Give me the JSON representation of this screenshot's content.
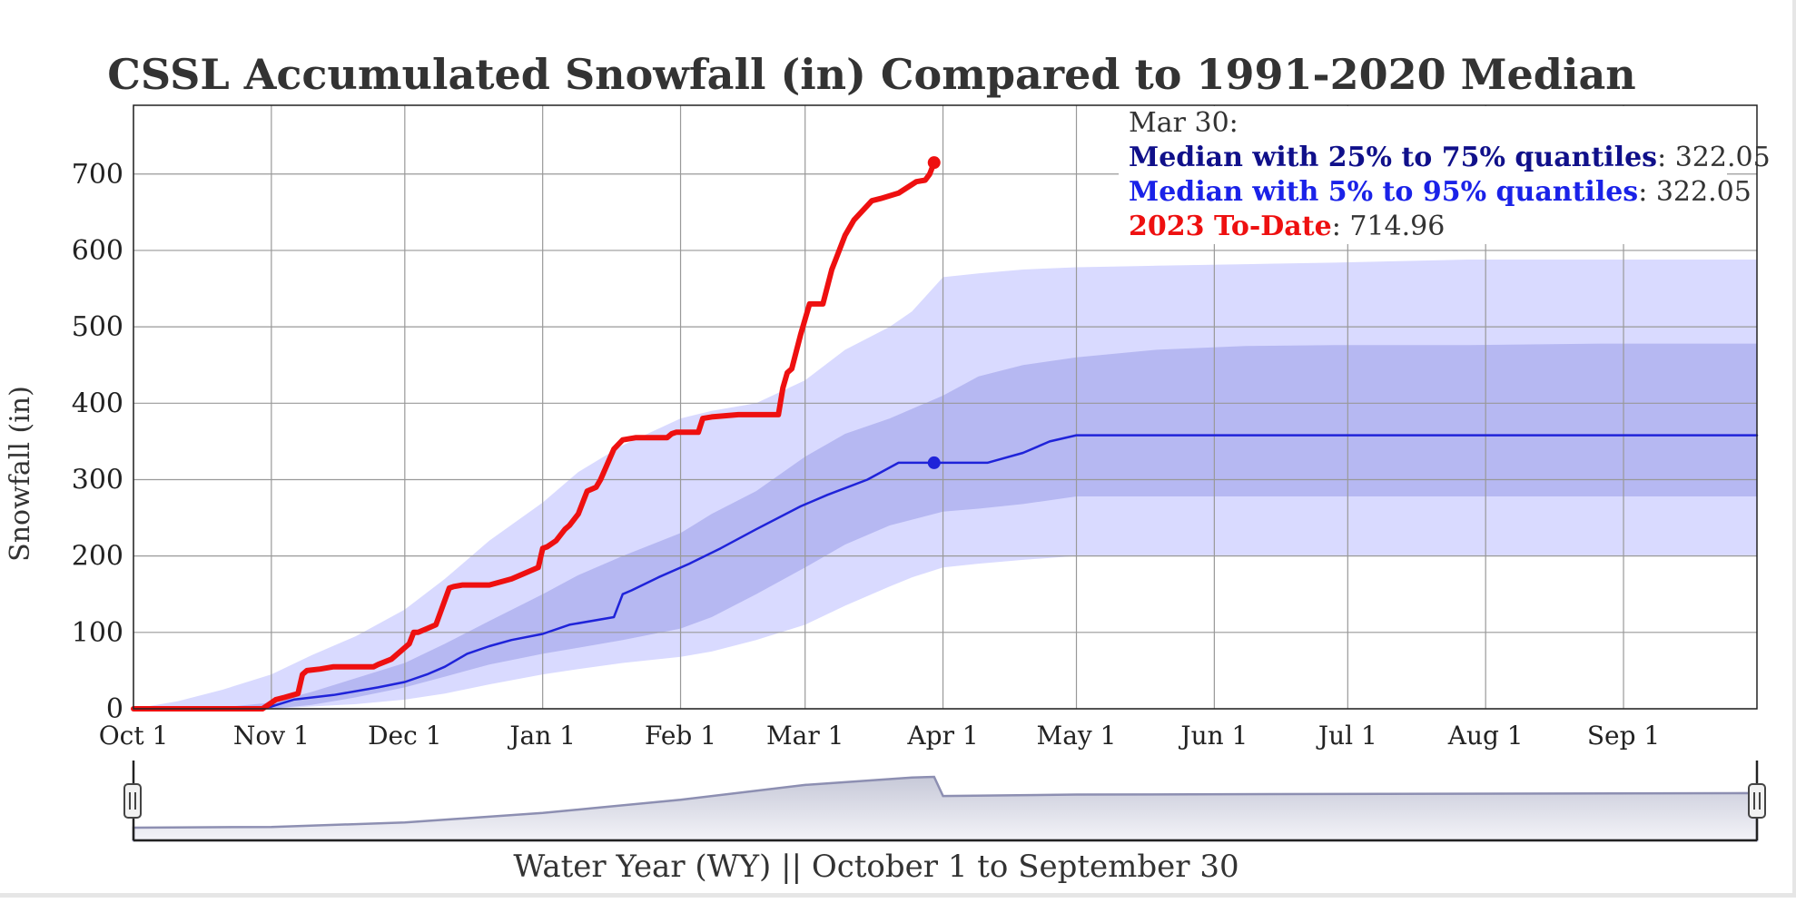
{
  "chart_data": {
    "type": "area",
    "title": "CSSL Accumulated Snowfall (in) Compared to 1991-2020 Median",
    "ylabel": "Snowfall (in)",
    "xlabel": "Water Year (WY) || October 1 to September 30",
    "ylim": [
      0,
      790
    ],
    "yticks": [
      0,
      100,
      200,
      300,
      400,
      500,
      600,
      700
    ],
    "xlim": [
      0,
      365
    ],
    "xticks": [
      {
        "day": 0,
        "label": "Oct 1"
      },
      {
        "day": 31,
        "label": "Nov 1"
      },
      {
        "day": 61,
        "label": "Dec 1"
      },
      {
        "day": 92,
        "label": "Jan 1"
      },
      {
        "day": 123,
        "label": "Feb 1"
      },
      {
        "day": 151,
        "label": "Mar 1"
      },
      {
        "day": 182,
        "label": "Apr 1"
      },
      {
        "day": 212,
        "label": "May 1"
      },
      {
        "day": 243,
        "label": "Jun 1"
      },
      {
        "day": 273,
        "label": "Jul 1"
      },
      {
        "day": 304,
        "label": "Aug 1"
      },
      {
        "day": 335,
        "label": "Sep 1"
      }
    ],
    "grid": true,
    "series": [
      {
        "name": "Median with 5% to 95% quantiles",
        "kind": "band",
        "color": "#d9daff",
        "x": [
          0,
          10,
          20,
          31,
          40,
          50,
          61,
          70,
          80,
          92,
          100,
          110,
          123,
          130,
          140,
          151,
          160,
          170,
          175,
          182,
          190,
          200,
          212,
          230,
          250,
          270,
          300,
          330,
          365
        ],
        "low": [
          0,
          0,
          0,
          0,
          3,
          6,
          12,
          20,
          32,
          45,
          52,
          60,
          68,
          75,
          90,
          110,
          135,
          160,
          172,
          185,
          190,
          195,
          200,
          200,
          200,
          200,
          200,
          200,
          200
        ],
        "high": [
          0,
          10,
          25,
          45,
          70,
          95,
          130,
          170,
          220,
          270,
          310,
          345,
          380,
          390,
          400,
          430,
          470,
          500,
          520,
          565,
          570,
          575,
          578,
          580,
          582,
          584,
          588,
          588,
          588
        ]
      },
      {
        "name": "Median with 25% to 75% quantiles",
        "kind": "band",
        "color": "#b6b8f2",
        "x": [
          0,
          10,
          20,
          31,
          40,
          50,
          61,
          70,
          80,
          92,
          100,
          110,
          123,
          130,
          140,
          151,
          160,
          170,
          182,
          190,
          200,
          212,
          230,
          250,
          270,
          300,
          330,
          365
        ],
        "low": [
          0,
          0,
          0,
          0,
          5,
          15,
          28,
          42,
          58,
          72,
          80,
          90,
          105,
          120,
          150,
          185,
          215,
          240,
          258,
          262,
          268,
          278,
          278,
          278,
          278,
          278,
          278,
          278
        ],
        "high": [
          0,
          0,
          2,
          8,
          22,
          40,
          60,
          85,
          115,
          150,
          175,
          200,
          230,
          255,
          285,
          330,
          360,
          380,
          410,
          435,
          450,
          460,
          470,
          475,
          476,
          476,
          478,
          478
        ]
      },
      {
        "name": "Median",
        "kind": "line",
        "color": "#1f23d9",
        "x": [
          0,
          28,
          31,
          36,
          45,
          55,
          61,
          66,
          70,
          75,
          80,
          85,
          92,
          98,
          108,
          110,
          112,
          118,
          125,
          132,
          140,
          150,
          156,
          165,
          172,
          179,
          182,
          186,
          192,
          200,
          206,
          212,
          230,
          260,
          300,
          340,
          365
        ],
        "y": [
          0,
          0,
          3,
          12,
          18,
          28,
          35,
          45,
          55,
          72,
          82,
          90,
          98,
          110,
          120,
          150,
          155,
          172,
          190,
          210,
          235,
          265,
          280,
          300,
          322,
          322,
          322,
          322,
          322,
          335,
          350,
          358,
          358,
          358,
          358,
          358,
          358
        ]
      },
      {
        "name": "2023 To-Date",
        "kind": "line",
        "color": "#ee1010",
        "x": [
          0,
          29,
          31,
          32,
          34,
          37,
          38,
          39,
          42,
          45,
          54,
          55,
          58,
          62,
          63,
          64,
          66,
          68,
          71,
          72,
          74,
          80,
          85,
          91,
          92,
          93,
          95,
          97,
          98,
          100,
          102,
          104,
          105,
          108,
          110,
          113,
          115,
          120,
          121,
          122,
          127,
          128,
          130,
          136,
          138,
          140,
          145,
          146,
          147,
          148,
          150,
          152,
          155,
          157,
          158,
          160,
          162,
          166,
          168,
          172,
          176,
          178,
          179,
          180
        ],
        "y": [
          0,
          0,
          8,
          12,
          15,
          20,
          45,
          50,
          52,
          55,
          55,
          58,
          65,
          85,
          100,
          100,
          105,
          110,
          158,
          160,
          162,
          162,
          170,
          185,
          210,
          212,
          220,
          235,
          240,
          255,
          285,
          290,
          300,
          340,
          352,
          355,
          355,
          355,
          360,
          362,
          362,
          380,
          382,
          385,
          385,
          385,
          385,
          420,
          440,
          445,
          490,
          530,
          530,
          575,
          590,
          620,
          640,
          665,
          668,
          675,
          690,
          692,
          700,
          714.96
        ]
      }
    ],
    "markers": [
      {
        "series": "Median",
        "x": 180,
        "y": 322.05,
        "color": "#1f23d9"
      },
      {
        "series": "2023 To-Date",
        "x": 180,
        "y": 714.96,
        "color": "#ee1010"
      }
    ],
    "tooltip": {
      "date": "Mar 30:",
      "rows": [
        {
          "label": "Median with 25% to 75% quantiles",
          "value": ": 322.05",
          "color": "#10108a"
        },
        {
          "label": "Median with 5% to 95% quantiles",
          "value": ": 322.05",
          "color": "#1a22e8"
        },
        {
          "label": "2023 To-Date",
          "value": ": 714.96",
          "color": "#ee1010"
        }
      ]
    },
    "navigator": {
      "x": [
        0,
        31,
        61,
        92,
        123,
        151,
        175,
        180,
        182,
        212,
        365
      ],
      "y": [
        0,
        5,
        35,
        100,
        190,
        290,
        340,
        345,
        215,
        225,
        235
      ]
    }
  }
}
